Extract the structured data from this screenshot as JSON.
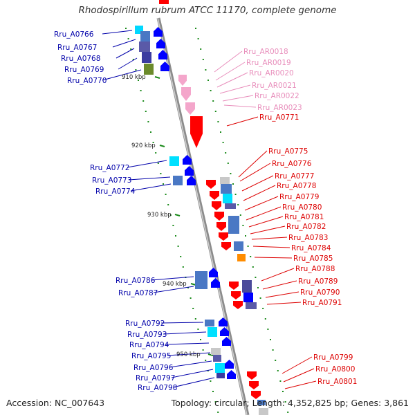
{
  "title": "Rhodospirillum rubrum ATCC 11170, complete genome",
  "footer": {
    "accession": "Accession: NC_007643",
    "topology": "Topology: circular; Length: 4,352,825 bp; Genes: 3,861"
  },
  "colors": {
    "backbone": "#8c8c8c",
    "forward_gene": "#ff0000",
    "forward_rna": "#f4a6cb",
    "reverse_gene": "#0000ff",
    "left_label": "#0000aa",
    "right_label": "#dd0000",
    "rna_label": "#e88dbb",
    "tick": "#1a8a1a"
  },
  "scale_labels": [
    "910 kbp",
    "920 kbp",
    "930 kbp",
    "940 kbp",
    "950 kbp"
  ],
  "left_labels": [
    "Rru_A0766",
    "Rru_A0767",
    "Rru_A0768",
    "Rru_A0769",
    "Rru_A0770",
    "Rru_A0772",
    "Rru_A0773",
    "Rru_A0774",
    "Rru_A0786",
    "Rru_A0787",
    "Rru_A0792",
    "Rru_A0793",
    "Rru_A0794",
    "Rru_A0795",
    "Rru_A0796",
    "Rru_A0797",
    "Rru_A0798"
  ],
  "rna_labels": [
    "Rru_AR0018",
    "Rru_AR0019",
    "Rru_AR0020",
    "Rru_AR0021",
    "Rru_AR0022",
    "Rru_AR0023"
  ],
  "right_labels": [
    "Rru_A0771",
    "Rru_A0775",
    "Rru_A0776",
    "Rru_A0777",
    "Rru_A0778",
    "Rru_A0779",
    "Rru_A0780",
    "Rru_A0781",
    "Rru_A0782",
    "Rru_A0783",
    "Rru_A0784",
    "Rru_A0785",
    "Rru_A0788",
    "Rru_A0789",
    "Rru_A0790",
    "Rru_A0791",
    "Rru_A0799",
    "Rru_A0800",
    "Rru_A0801"
  ]
}
